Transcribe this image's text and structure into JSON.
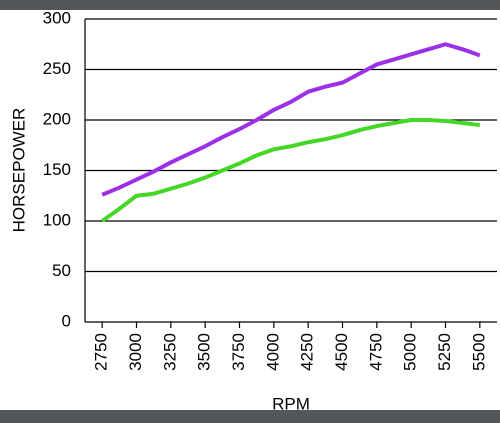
{
  "chart_data": {
    "type": "line",
    "x_label": "RPM",
    "y_label": "HORSEPOWER",
    "x": [
      2750,
      2875,
      3000,
      3125,
      3250,
      3375,
      3500,
      3625,
      3750,
      3875,
      4000,
      4125,
      4250,
      4375,
      4500,
      4625,
      4750,
      4875,
      5000,
      5125,
      5250,
      5375,
      5500
    ],
    "series": [
      {
        "color": "#9b30e8",
        "values": [
          126,
          133,
          141,
          149,
          158,
          166,
          174,
          183,
          191,
          200,
          210,
          218,
          228,
          233,
          237,
          246,
          255,
          260,
          265,
          270,
          275,
          270,
          264
        ]
      },
      {
        "color": "#44d726",
        "values": [
          100,
          112,
          125,
          127,
          132,
          137,
          143,
          150,
          157,
          165,
          171,
          174,
          178,
          181,
          185,
          190,
          194,
          197,
          200,
          200,
          199,
          197,
          195
        ]
      }
    ],
    "xlim": [
      2625,
      5625
    ],
    "xticks": [
      2750,
      3000,
      3250,
      3500,
      3750,
      4000,
      4250,
      4500,
      4750,
      5000,
      5250,
      5500
    ],
    "ylim": [
      0,
      300
    ],
    "yticks": [
      0,
      50,
      100,
      150,
      200,
      250,
      300
    ],
    "grid": true
  }
}
